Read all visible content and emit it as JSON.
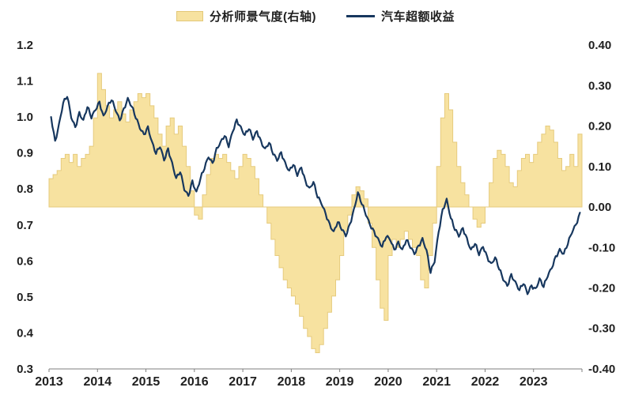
{
  "legend": [
    {
      "label": "分析师景气度(右轴)",
      "type": "area",
      "color": "#F7E2A0"
    },
    {
      "label": "汽车超额收益",
      "type": "line",
      "color": "#17375E"
    }
  ],
  "chart_data": {
    "type": "combo",
    "title": "",
    "frequency": "monthly (estimated from step width)",
    "x_tick_labels": [
      "2013",
      "2014",
      "2015",
      "2016",
      "2017",
      "2018",
      "2019",
      "2020",
      "2021",
      "2022",
      "2023"
    ],
    "left_axis": {
      "min": 0.3,
      "max": 1.2,
      "ticks": [
        1.2,
        1.1,
        1.0,
        0.9,
        0.8,
        0.7,
        0.6,
        0.5,
        0.4,
        0.3
      ],
      "labels": [
        "1.2",
        "1.1",
        "1.0",
        "0.9",
        "0.8",
        "0.7",
        "0.6",
        "0.5",
        "0.4",
        "0.3"
      ]
    },
    "right_axis": {
      "min": -0.4,
      "max": 0.4,
      "ticks": [
        0.4,
        0.3,
        0.2,
        0.1,
        0.0,
        -0.1,
        -0.2,
        -0.3,
        -0.4
      ],
      "labels": [
        "0.40",
        "0.30",
        "0.20",
        "0.10",
        "0.00",
        "-0.10",
        "-0.20",
        "-0.30",
        "-0.40"
      ]
    },
    "axis_color": "#7f7f7f",
    "series": [
      {
        "name": "分析师景气度(右轴)",
        "type": "step-area",
        "axis": "right",
        "color": "#F7E2A0",
        "edge": "#E6CB7E",
        "values": [
          0.07,
          0.08,
          0.09,
          0.12,
          0.13,
          0.11,
          0.13,
          0.1,
          0.12,
          0.13,
          0.15,
          0.22,
          0.33,
          0.29,
          0.25,
          0.22,
          0.24,
          0.26,
          0.23,
          0.21,
          0.24,
          0.26,
          0.28,
          0.27,
          0.28,
          0.25,
          0.22,
          0.18,
          0.15,
          0.2,
          0.22,
          0.18,
          0.2,
          0.15,
          0.1,
          0.04,
          -0.02,
          -0.03,
          0.03,
          0.08,
          0.12,
          0.13,
          0.12,
          0.13,
          0.11,
          0.09,
          0.07,
          0.1,
          0.13,
          0.12,
          0.1,
          0.07,
          0.03,
          0.0,
          -0.04,
          -0.08,
          -0.12,
          -0.15,
          -0.18,
          -0.2,
          -0.22,
          -0.24,
          -0.27,
          -0.3,
          -0.32,
          -0.35,
          -0.36,
          -0.34,
          -0.3,
          -0.26,
          -0.22,
          -0.18,
          -0.12,
          -0.06,
          -0.02,
          0.03,
          0.05,
          0.04,
          0.02,
          -0.04,
          -0.1,
          -0.18,
          -0.25,
          -0.28,
          -0.12,
          -0.08,
          -0.1,
          -0.08,
          -0.06,
          -0.08,
          -0.1,
          -0.12,
          -0.18,
          -0.2,
          -0.12,
          -0.04,
          0.1,
          0.22,
          0.28,
          0.24,
          0.16,
          0.1,
          0.06,
          0.03,
          0.0,
          -0.03,
          -0.05,
          -0.04,
          0.0,
          0.06,
          0.12,
          0.14,
          0.13,
          0.1,
          0.06,
          0.05,
          0.09,
          0.12,
          0.13,
          0.11,
          0.13,
          0.16,
          0.18,
          0.2,
          0.19,
          0.16,
          0.12,
          0.09,
          0.1,
          0.13,
          0.1,
          0.18
        ]
      },
      {
        "name": "汽车超额收益",
        "type": "line",
        "axis": "left",
        "color": "#17375E",
        "values": [
          1.0,
          0.93,
          0.98,
          1.04,
          1.06,
          1.0,
          0.97,
          1.01,
          0.99,
          1.03,
          1.0,
          1.02,
          1.04,
          1.0,
          1.03,
          1.05,
          1.02,
          0.99,
          1.02,
          1.05,
          1.03,
          1.0,
          0.97,
          0.95,
          0.97,
          0.93,
          0.9,
          0.92,
          0.88,
          0.91,
          0.87,
          0.83,
          0.85,
          0.8,
          0.78,
          0.82,
          0.79,
          0.83,
          0.86,
          0.89,
          0.87,
          0.91,
          0.93,
          0.95,
          0.92,
          0.96,
          0.99,
          0.97,
          0.95,
          0.97,
          0.94,
          0.96,
          0.93,
          0.91,
          0.93,
          0.9,
          0.88,
          0.9,
          0.87,
          0.85,
          0.87,
          0.84,
          0.86,
          0.82,
          0.8,
          0.82,
          0.78,
          0.76,
          0.73,
          0.7,
          0.68,
          0.71,
          0.69,
          0.67,
          0.7,
          0.74,
          0.79,
          0.76,
          0.73,
          0.7,
          0.68,
          0.66,
          0.64,
          0.67,
          0.66,
          0.63,
          0.65,
          0.63,
          0.66,
          0.64,
          0.62,
          0.64,
          0.66,
          0.63,
          0.57,
          0.6,
          0.68,
          0.74,
          0.77,
          0.72,
          0.69,
          0.67,
          0.69,
          0.66,
          0.63,
          0.65,
          0.62,
          0.64,
          0.61,
          0.59,
          0.61,
          0.58,
          0.55,
          0.53,
          0.56,
          0.54,
          0.52,
          0.54,
          0.51,
          0.53,
          0.52,
          0.55,
          0.53,
          0.56,
          0.58,
          0.61,
          0.63,
          0.62,
          0.65,
          0.68,
          0.7,
          0.73
        ]
      }
    ]
  }
}
